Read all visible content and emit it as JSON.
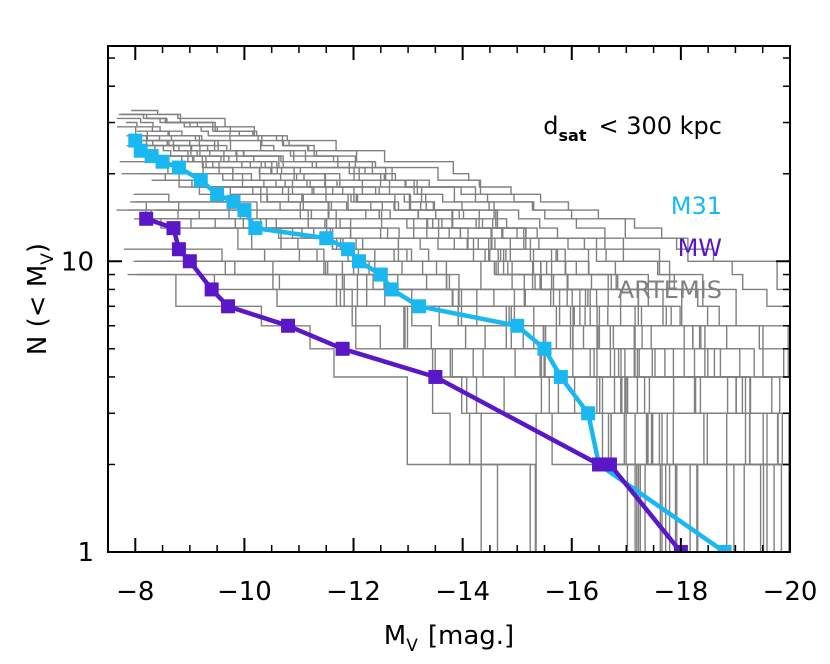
{
  "chart_data": {
    "type": "line",
    "title": "",
    "annotation": {
      "main": "d",
      "sub": "sat",
      "rest": "< 300 kpc"
    },
    "xlabel": {
      "main": "M",
      "sub": "V",
      "rest": "[mag.]"
    },
    "ylabel": {
      "main": "N (< M",
      "sub": "V",
      "rest": ")"
    },
    "xlim": [
      -7.5,
      -20
    ],
    "ylim": [
      1,
      55
    ],
    "yscale": "log",
    "x_ticks": [
      -8,
      -10,
      -12,
      -14,
      -16,
      -18,
      -20
    ],
    "x_tick_labels": [
      "−8",
      "−10",
      "−12",
      "−14",
      "−16",
      "−18",
      "−20"
    ],
    "y_ticks": [
      1,
      10
    ],
    "y_tick_labels": [
      "1",
      "10"
    ],
    "legend": [
      {
        "name": "M31",
        "color": "#1ab8f0"
      },
      {
        "name": "MW",
        "color": "#5a17c8"
      },
      {
        "name": "ARTEMIS",
        "color": "#808080"
      }
    ],
    "series": [
      {
        "name": "M31",
        "color": "#1ab8f0",
        "x": [
          -8.0,
          -8.1,
          -8.3,
          -8.5,
          -8.8,
          -9.2,
          -9.5,
          -9.8,
          -10.0,
          -10.2,
          -11.5,
          -11.9,
          -12.1,
          -12.5,
          -12.7,
          -13.2,
          -15.0,
          -15.5,
          -15.8,
          -16.3,
          -16.5,
          -18.8
        ],
        "y": [
          26,
          24,
          23,
          22,
          21,
          19,
          17,
          16,
          15,
          13,
          12,
          11,
          10,
          9,
          8,
          7,
          6,
          5,
          4,
          3,
          2,
          1
        ]
      },
      {
        "name": "MW",
        "color": "#5a17c8",
        "x": [
          -8.2,
          -8.7,
          -8.8,
          -9.0,
          -9.4,
          -9.7,
          -10.8,
          -11.8,
          -13.5,
          -16.5,
          -16.7,
          -18.0
        ],
        "y": [
          14,
          13,
          11,
          10,
          8,
          7,
          6,
          5,
          4,
          2,
          2,
          1
        ]
      }
    ],
    "artemis_lines": {
      "count": 42,
      "color": "#808080",
      "description": "ARTEMIS simulated systems"
    }
  }
}
